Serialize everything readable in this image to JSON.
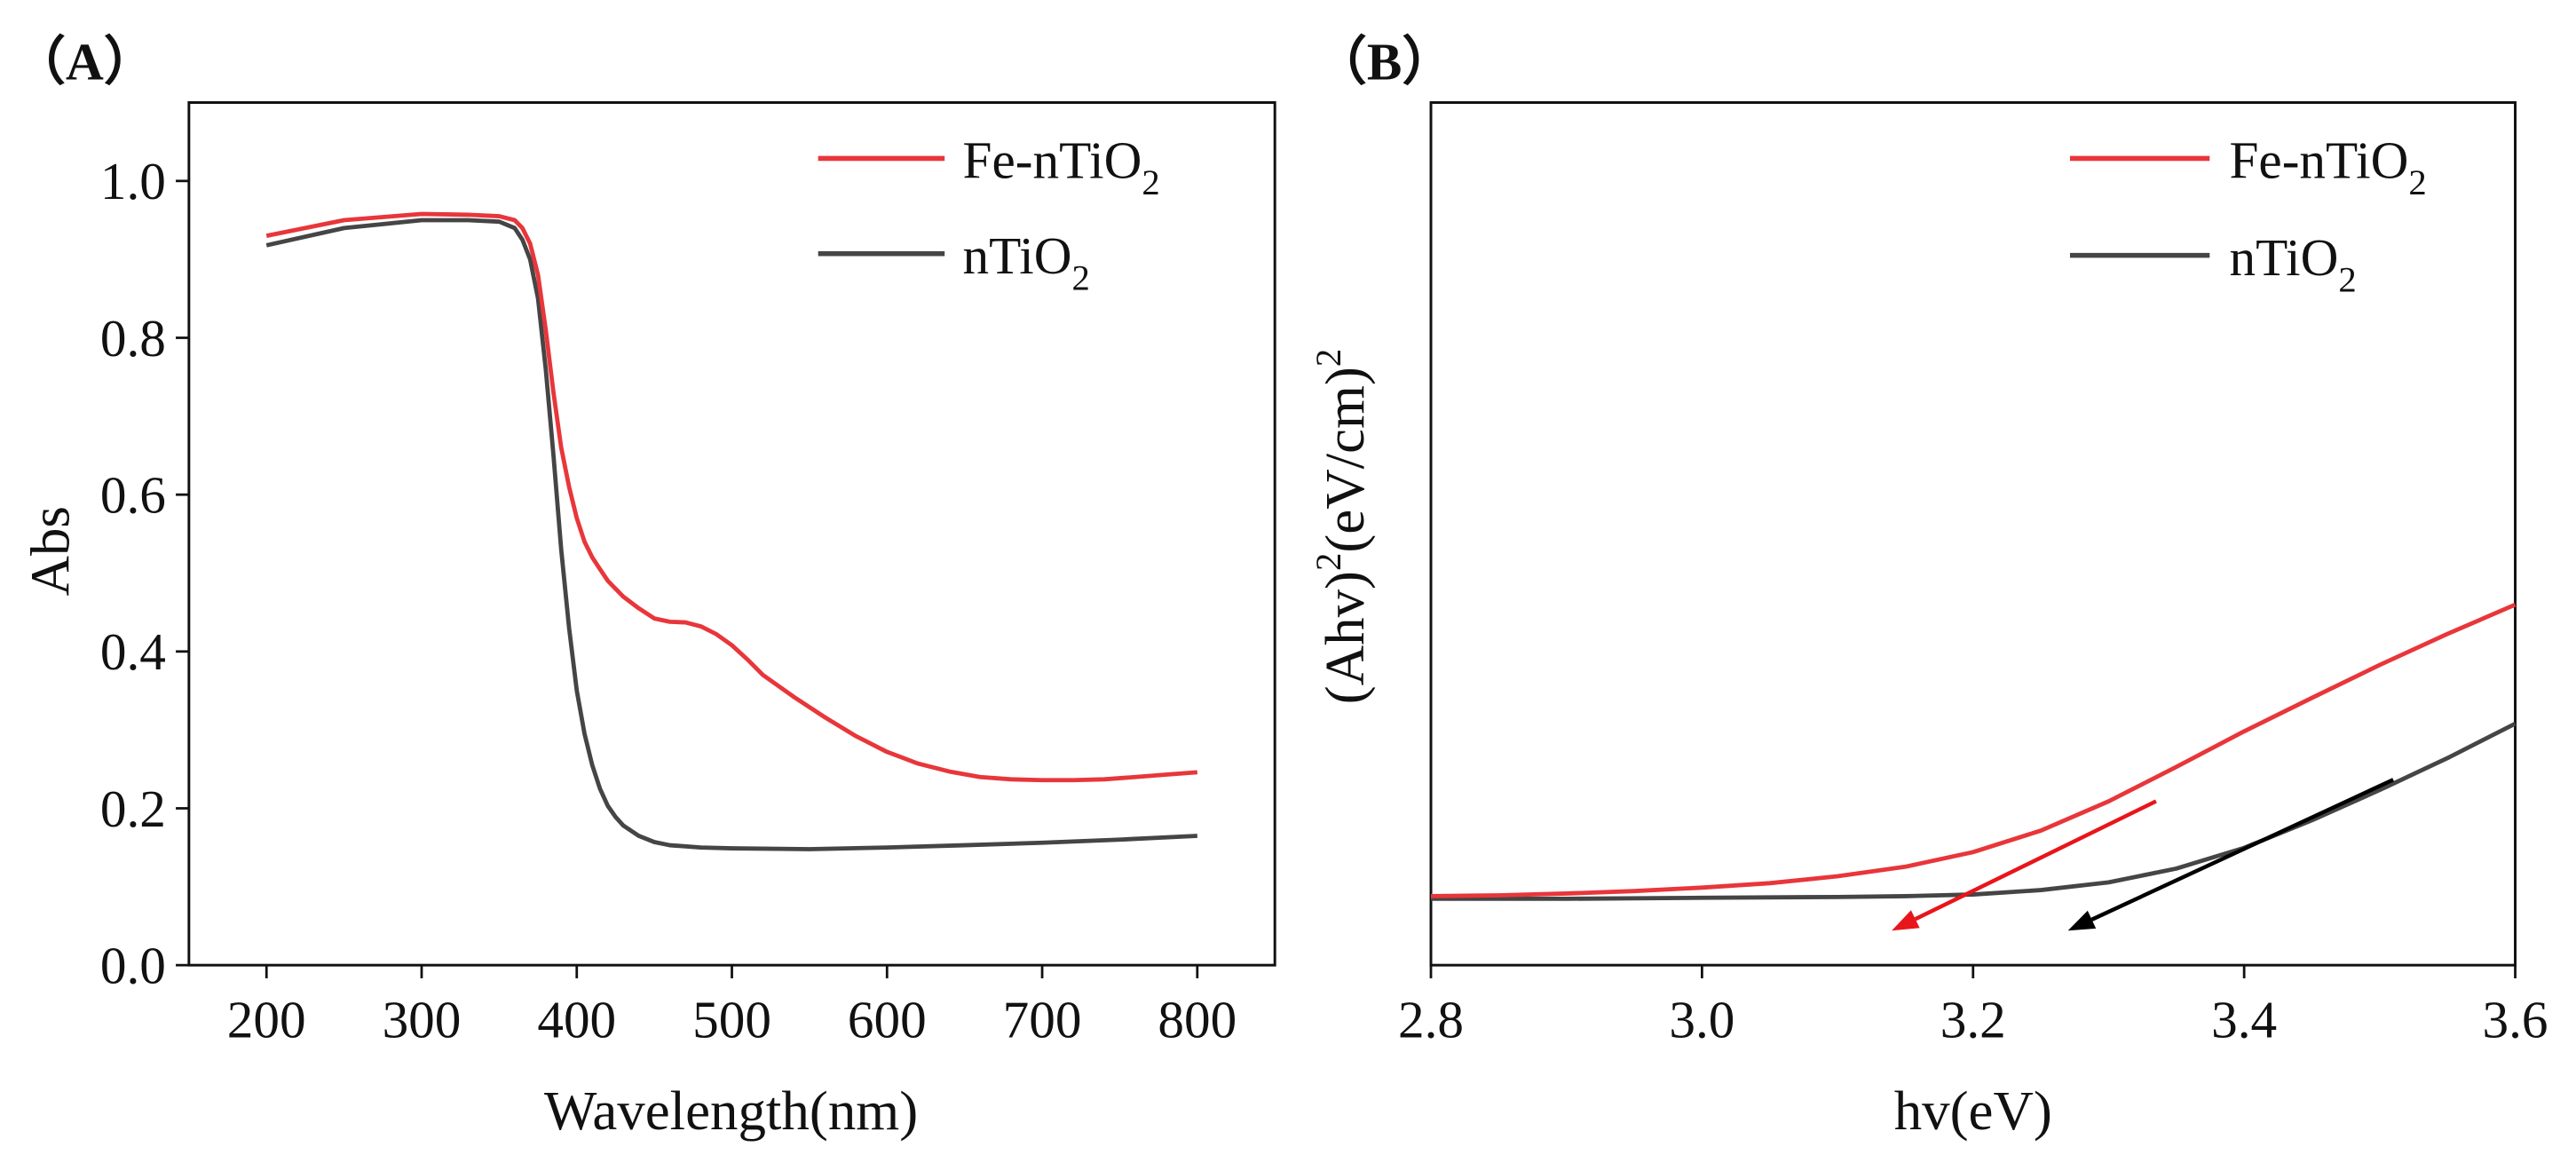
{
  "chart_data": [
    {
      "type": "line",
      "panel_label": "（A）",
      "title": "",
      "xlabel": "Wavelength(nm)",
      "ylabel": "Abs",
      "xlim": [
        150,
        850
      ],
      "ylim": [
        0.0,
        1.1
      ],
      "xticks": [
        200,
        300,
        400,
        500,
        600,
        700,
        800
      ],
      "xtick_labels": [
        "200",
        "300",
        "400",
        "500",
        "600",
        "700",
        "800"
      ],
      "yticks": [
        0.0,
        0.2,
        0.4,
        0.6,
        0.8,
        1.0
      ],
      "ytick_labels": [
        "0.0",
        "0.2",
        "0.4",
        "0.6",
        "0.8",
        "1.0"
      ],
      "grid": false,
      "legend_position": "top-right",
      "series": [
        {
          "name": "Fe-nTiO2",
          "legend_main": "Fe-nTiO",
          "legend_sub": "2",
          "color": "#e8363a",
          "x": [
            200,
            250,
            300,
            330,
            350,
            360,
            365,
            370,
            375,
            380,
            385,
            390,
            395,
            400,
            405,
            410,
            415,
            420,
            430,
            440,
            450,
            460,
            470,
            480,
            490,
            500,
            510,
            520,
            540,
            560,
            580,
            600,
            620,
            640,
            660,
            680,
            700,
            720,
            740,
            760,
            780,
            800
          ],
          "y": [
            0.93,
            0.95,
            0.958,
            0.957,
            0.955,
            0.95,
            0.94,
            0.92,
            0.88,
            0.81,
            0.73,
            0.66,
            0.61,
            0.57,
            0.54,
            0.52,
            0.505,
            0.49,
            0.47,
            0.455,
            0.442,
            0.438,
            0.437,
            0.432,
            0.422,
            0.408,
            0.39,
            0.37,
            0.342,
            0.316,
            0.292,
            0.272,
            0.257,
            0.247,
            0.24,
            0.237,
            0.236,
            0.236,
            0.237,
            0.24,
            0.243,
            0.246
          ]
        },
        {
          "name": "nTiO2",
          "legend_main": "nTiO",
          "legend_sub": "2",
          "color": "#454545",
          "x": [
            200,
            250,
            300,
            330,
            350,
            360,
            365,
            370,
            375,
            380,
            385,
            390,
            395,
            400,
            405,
            410,
            415,
            420,
            425,
            430,
            440,
            450,
            460,
            480,
            500,
            550,
            600,
            650,
            700,
            750,
            800
          ],
          "y": [
            0.918,
            0.94,
            0.95,
            0.95,
            0.948,
            0.94,
            0.925,
            0.9,
            0.85,
            0.76,
            0.65,
            0.53,
            0.43,
            0.35,
            0.295,
            0.255,
            0.225,
            0.203,
            0.189,
            0.178,
            0.165,
            0.157,
            0.153,
            0.15,
            0.149,
            0.148,
            0.15,
            0.153,
            0.156,
            0.16,
            0.165
          ]
        }
      ]
    },
    {
      "type": "line",
      "panel_label": "（B）",
      "title": "",
      "xlabel": "hv(eV)",
      "ylabel": "(Ahv)²(eV/cm)²",
      "ylabel_parts": [
        "(Ahv)",
        "2",
        "(eV/cm)",
        "2"
      ],
      "xlim": [
        2.8,
        3.6
      ],
      "ylim": [
        0,
        1.0
      ],
      "xticks": [
        2.8,
        3.0,
        3.2,
        3.4,
        3.6
      ],
      "xtick_labels": [
        "2.8",
        "3.0",
        "3.2",
        "3.4",
        "3.6"
      ],
      "yticks": [],
      "grid": false,
      "legend_position": "top-right",
      "series": [
        {
          "name": "Fe-nTiO2",
          "legend_main": "Fe-nTiO",
          "legend_sub": "2",
          "color": "#e8363a",
          "x": [
            2.8,
            2.85,
            2.9,
            2.95,
            3.0,
            3.05,
            3.1,
            3.15,
            3.2,
            3.25,
            3.3,
            3.35,
            3.4,
            3.45,
            3.5,
            3.55,
            3.6
          ],
          "y": [
            0.08,
            0.081,
            0.083,
            0.086,
            0.09,
            0.095,
            0.103,
            0.114,
            0.131,
            0.156,
            0.19,
            0.23,
            0.271,
            0.31,
            0.348,
            0.384,
            0.418
          ]
        },
        {
          "name": "nTiO2",
          "legend_main": "nTiO",
          "legend_sub": "2",
          "color": "#454545",
          "x": [
            2.8,
            2.9,
            3.0,
            3.1,
            3.15,
            3.2,
            3.25,
            3.3,
            3.35,
            3.4,
            3.45,
            3.5,
            3.55,
            3.6
          ],
          "y": [
            0.077,
            0.077,
            0.078,
            0.079,
            0.08,
            0.082,
            0.087,
            0.096,
            0.112,
            0.136,
            0.168,
            0.203,
            0.24,
            0.28
          ]
        }
      ],
      "annotations": [
        {
          "type": "arrow",
          "color": "#e8151b",
          "from": [
            3.335,
            0.19
          ],
          "to": [
            3.14,
            0.04
          ]
        },
        {
          "type": "arrow",
          "color": "#000000",
          "from": [
            3.51,
            0.215
          ],
          "to": [
            3.27,
            0.04
          ]
        }
      ]
    }
  ]
}
